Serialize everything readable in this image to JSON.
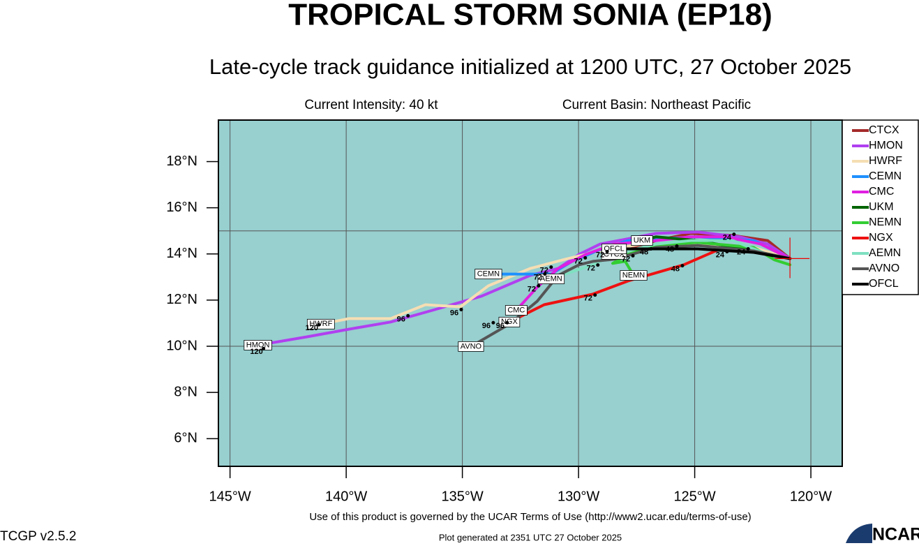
{
  "chart_data": {
    "type": "line",
    "title": "TROPICAL STORM SONIA (EP18)",
    "subtitle": "Late-cycle track guidance initialized at 1200 UTC, 27 October 2025",
    "intensity": "Current Intensity: 40 kt",
    "basin": "Current Basin: Northeast Pacific",
    "footer": "Use of this product is governed by the UCAR Terms of Use (http://www2.ucar.edu/terms-of-use)",
    "version": "TCGP v2.5.2",
    "generated": "Plot generated at 2351 UTC   27 October 2025",
    "logo": "NCAR",
    "background": "#98cfcf",
    "xlim": [
      -145.5,
      -118.65
    ],
    "ylim": [
      4.8,
      19.8
    ],
    "xticks": [
      {
        "value": -145,
        "label": "145°W"
      },
      {
        "value": -140,
        "label": "140°W"
      },
      {
        "value": -135,
        "label": "135°W"
      },
      {
        "value": -130,
        "label": "130°W"
      },
      {
        "value": -125,
        "label": "125°W"
      },
      {
        "value": -120,
        "label": "120°W"
      }
    ],
    "yticks": [
      {
        "value": 6,
        "label": "6°N"
      },
      {
        "value": 8,
        "label": "8°N"
      },
      {
        "value": 10,
        "label": "10°N"
      },
      {
        "value": 12,
        "label": "12°N"
      },
      {
        "value": 14,
        "label": "14°N"
      },
      {
        "value": 16,
        "label": "16°N"
      },
      {
        "value": 18,
        "label": "18°N"
      }
    ],
    "xgrid": [
      -145,
      -140,
      -135,
      -130,
      -125,
      -120
    ],
    "ygrid": [
      10,
      15
    ],
    "grid": true,
    "legend": "right",
    "current_position": {
      "x": -120.9,
      "y": 13.8
    },
    "series": [
      {
        "name": "CTCX",
        "color": "#a52a2a",
        "x": [
          -120.9,
          -121.86,
          -123.36,
          -125.17,
          -126.67,
          -127.87,
          -128.47
        ],
        "values": [
          13.8,
          14.58,
          14.8,
          14.89,
          14.58,
          14.19,
          13.98
        ]
      },
      {
        "name": "HMON",
        "color": "#b040f0",
        "x": [
          -120.9,
          -121.86,
          -123.06,
          -124.87,
          -126.67,
          -129.07,
          -129.98,
          -130.88,
          -132.08,
          -134.18,
          -136.29,
          -138.09,
          -139.89,
          -141.69,
          -143.8
        ],
        "values": [
          13.8,
          14.43,
          14.74,
          14.95,
          14.89,
          14.43,
          13.98,
          13.37,
          13.07,
          12.17,
          11.56,
          11.05,
          10.74,
          10.41,
          10.05
        ]
      },
      {
        "name": "HWRF",
        "color": "#f5deb3",
        "x": [
          -120.9,
          -122.46,
          -124.87,
          -127.27,
          -129.07,
          -130.58,
          -132.08,
          -133.88,
          -135.08,
          -136.59,
          -138.09,
          -139.89,
          -141.09
        ],
        "values": [
          13.8,
          14.28,
          14.37,
          14.43,
          14.13,
          13.77,
          13.37,
          12.62,
          11.71,
          11.8,
          11.2,
          11.2,
          10.96
        ]
      },
      {
        "name": "CEMN",
        "color": "#1e90ff",
        "x": [
          -120.9,
          -122.46,
          -124.87,
          -127.87,
          -129.07,
          -130.28,
          -131.18,
          -133.88
        ],
        "values": [
          13.8,
          14.58,
          14.74,
          14.58,
          14.19,
          13.68,
          13.13,
          13.13
        ]
      },
      {
        "name": "CMC",
        "color": "#e020e0",
        "x": [
          -120.9,
          -122.16,
          -123.66,
          -125.17,
          -126.67,
          -128.47,
          -129.68,
          -130.88,
          -131.78,
          -132.68
        ],
        "values": [
          13.8,
          14.43,
          14.74,
          14.74,
          14.58,
          14.43,
          13.98,
          13.37,
          12.56,
          11.56
        ]
      },
      {
        "name": "UKM",
        "color": "#006400",
        "x": [
          -120.9,
          -122.46,
          -124.87,
          -126.67,
          -127.27
        ],
        "values": [
          13.8,
          14.13,
          14.58,
          14.74,
          14.58
        ]
      },
      {
        "name": "NEMN",
        "color": "#32cd32",
        "x": [
          -120.9,
          -121.56,
          -122.46,
          -124.87,
          -126.67,
          -127.87,
          -128.53,
          -127.99,
          -127.63
        ],
        "values": [
          13.53,
          13.74,
          14.28,
          14.5,
          14.37,
          13.98,
          13.59,
          13.68,
          13.07
        ]
      },
      {
        "name": "NGX",
        "color": "#ee1111",
        "x": [
          -120.9,
          -122.76,
          -123.97,
          -125.47,
          -127.87,
          -129.38,
          -131.48,
          -132.98
        ],
        "values": [
          13.8,
          14.13,
          14.19,
          13.53,
          12.83,
          12.26,
          11.8,
          11.05
        ]
      },
      {
        "name": "AEMN",
        "color": "#7fe0c0",
        "x": [
          -120.9,
          -121.86,
          -123.36,
          -125.17,
          -126.67,
          -128.47,
          -129.38,
          -130.58,
          -131.18
        ],
        "values": [
          13.8,
          13.98,
          14.58,
          14.58,
          14.43,
          13.98,
          13.53,
          13.13,
          12.92
        ]
      },
      {
        "name": "AVNO",
        "color": "#555555",
        "x": [
          -120.9,
          -122.46,
          -124.87,
          -126.67,
          -128.47,
          -129.38,
          -129.98,
          -130.88,
          -131.78,
          -132.98,
          -134.63
        ],
        "values": [
          13.8,
          14.13,
          14.37,
          14.28,
          13.77,
          13.68,
          13.53,
          13.07,
          11.95,
          10.96,
          9.99
        ]
      },
      {
        "name": "OFCL",
        "color": "#000000",
        "x": [
          -120.9,
          -122.46,
          -124.87,
          -126.67,
          -128.47
        ],
        "values": [
          13.8,
          14.07,
          14.22,
          14.22,
          14.22
        ]
      }
    ],
    "annotations": [
      {
        "text": "120",
        "x": -143.86,
        "y": 9.75
      },
      {
        "text": "120",
        "x": -141.48,
        "y": 10.78
      },
      {
        "text": "96",
        "x": -137.64,
        "y": 11.17
      },
      {
        "text": "96",
        "x": -135.35,
        "y": 11.44
      },
      {
        "text": "96",
        "x": -133.97,
        "y": 10.87
      },
      {
        "text": "96",
        "x": -133.37,
        "y": 10.87
      },
      {
        "text": "72",
        "x": -129.59,
        "y": 12.07
      },
      {
        "text": "72",
        "x": -132.02,
        "y": 12.47
      },
      {
        "text": "72",
        "x": -131.75,
        "y": 12.98
      },
      {
        "text": "72",
        "x": -131.48,
        "y": 13.28
      },
      {
        "text": "72",
        "x": -129.47,
        "y": 13.37
      },
      {
        "text": "72",
        "x": -130.01,
        "y": 13.68
      },
      {
        "text": "72",
        "x": -129.07,
        "y": 13.95
      },
      {
        "text": "72",
        "x": -127.96,
        "y": 13.77
      },
      {
        "text": "48",
        "x": -125.83,
        "y": 13.34
      },
      {
        "text": "48",
        "x": -127.18,
        "y": 14.07
      },
      {
        "text": "48",
        "x": -126.07,
        "y": 14.19
      },
      {
        "text": "24",
        "x": -123.91,
        "y": 13.95
      },
      {
        "text": "24",
        "x": -123.0,
        "y": 14.07
      },
      {
        "text": "24",
        "x": -123.61,
        "y": 14.7
      }
    ]
  }
}
